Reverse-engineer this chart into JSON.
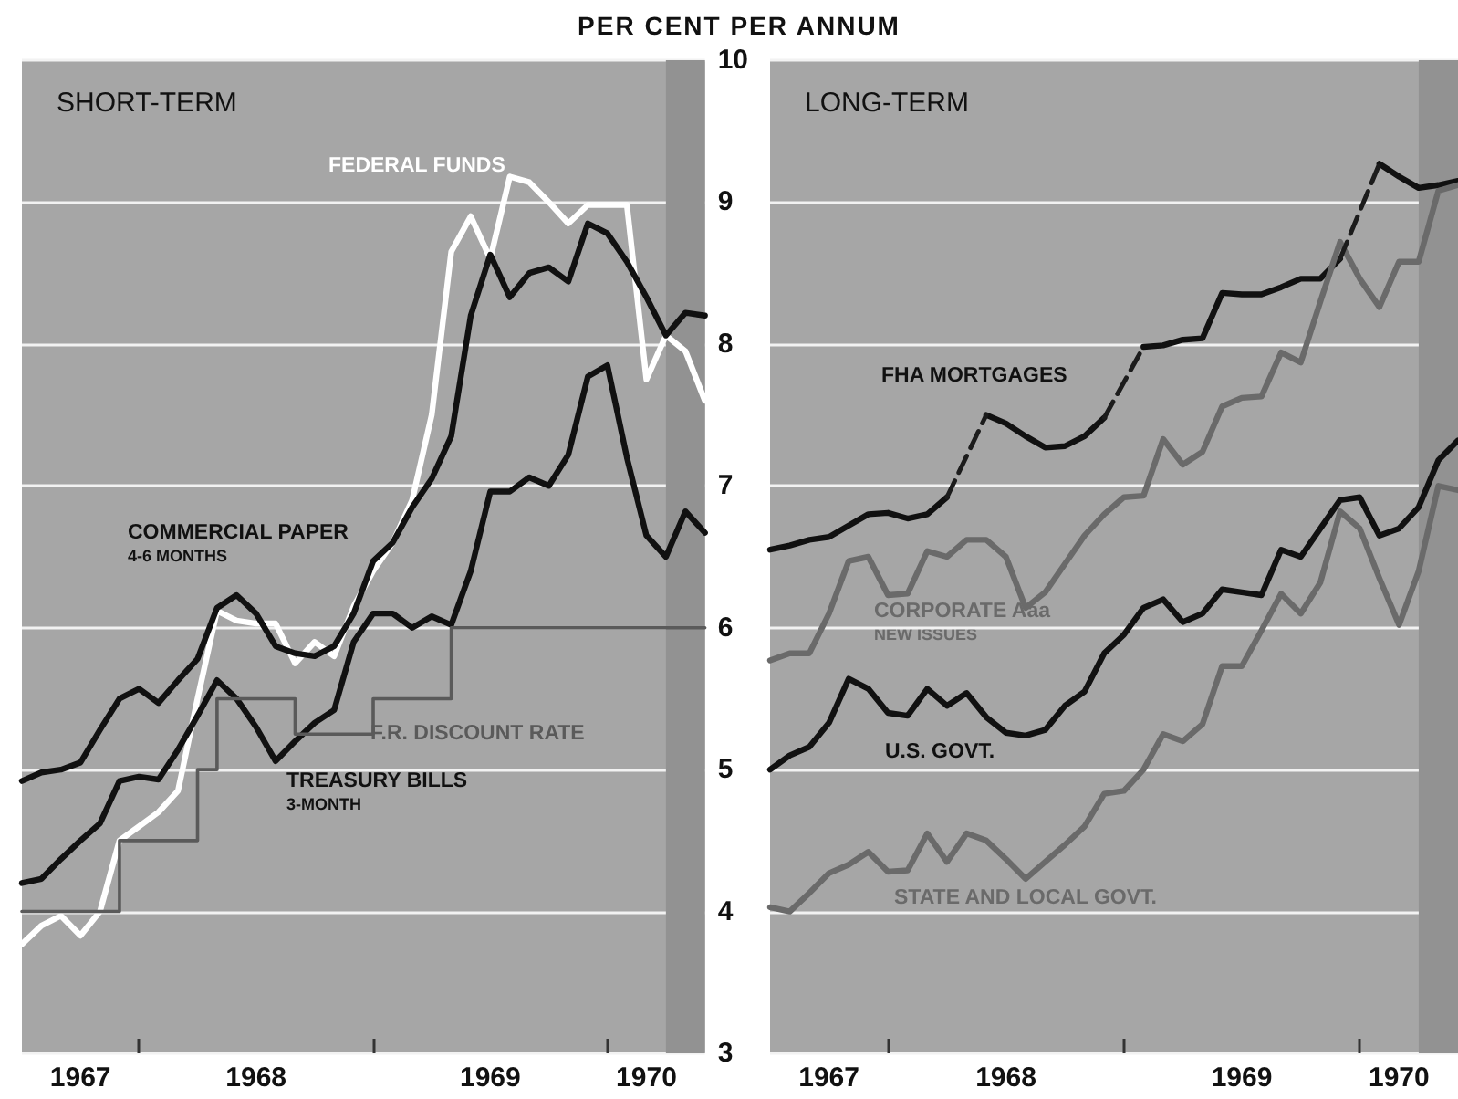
{
  "chart_data": [
    {
      "type": "line",
      "title": "SHORT-TERM",
      "ylabel": "PER CENT PER ANNUM",
      "x": [
        "1967-07",
        "1967-08",
        "1967-09",
        "1967-10",
        "1967-11",
        "1967-12",
        "1968-01",
        "1968-02",
        "1968-03",
        "1968-04",
        "1968-05",
        "1968-06",
        "1968-07",
        "1968-08",
        "1968-09",
        "1968-10",
        "1968-11",
        "1968-12",
        "1969-01",
        "1969-02",
        "1969-03",
        "1969-04",
        "1969-05",
        "1969-06",
        "1969-07",
        "1969-08",
        "1969-09",
        "1969-10",
        "1969-11",
        "1969-12",
        "1970-01",
        "1970-02",
        "1970-03",
        "1970-04",
        "1970-05",
        "1970-06"
      ],
      "series": [
        {
          "name": "FEDERAL FUNDS",
          "color": "#ffffff",
          "values": [
            3.77,
            3.9,
            3.97,
            3.83,
            4.0,
            4.5,
            4.6,
            4.7,
            4.85,
            5.5,
            6.12,
            6.05,
            6.03,
            6.03,
            5.75,
            5.9,
            5.8,
            6.15,
            6.4,
            6.6,
            6.9,
            7.5,
            8.65,
            8.9,
            8.6,
            9.18,
            9.14,
            9.0,
            8.85,
            8.98,
            8.98,
            8.98,
            7.75,
            8.06,
            7.95,
            7.6
          ]
        },
        {
          "name": "COMMERCIAL PAPER\n4-6 MONTHS",
          "color": "#111111",
          "values": [
            4.92,
            4.98,
            5.0,
            5.05,
            5.28,
            5.5,
            5.57,
            5.47,
            5.63,
            5.78,
            6.14,
            6.23,
            6.1,
            5.87,
            5.82,
            5.8,
            5.87,
            6.1,
            6.47,
            6.6,
            6.85,
            7.05,
            7.35,
            8.2,
            8.63,
            8.33,
            8.5,
            8.54,
            8.44,
            8.85,
            8.78,
            8.58,
            8.33,
            8.06,
            8.22,
            8.2
          ]
        },
        {
          "name": "TREASURY BILLS\n3-MONTH",
          "color": "#111111",
          "values": [
            4.2,
            4.23,
            4.37,
            4.5,
            4.62,
            4.92,
            4.95,
            4.93,
            5.14,
            5.38,
            5.63,
            5.5,
            5.3,
            5.06,
            5.2,
            5.33,
            5.42,
            5.9,
            6.1,
            6.1,
            6.0,
            6.08,
            6.02,
            6.4,
            6.96,
            6.96,
            7.06,
            7.0,
            7.22,
            7.77,
            7.85,
            7.2,
            6.65,
            6.5,
            6.82,
            6.67
          ]
        },
        {
          "name": "F.R. DISCOUNT RATE",
          "type": "step",
          "color": "#5a5a5a",
          "values": [
            4.0,
            4.0,
            4.0,
            4.0,
            4.0,
            4.5,
            4.5,
            4.5,
            4.5,
            5.0,
            5.5,
            5.5,
            5.5,
            5.5,
            5.25,
            5.25,
            5.25,
            5.25,
            5.5,
            5.5,
            5.5,
            5.5,
            6.0,
            6.0,
            6.0,
            6.0,
            6.0,
            6.0,
            6.0,
            6.0,
            6.0,
            6.0,
            6.0,
            6.0,
            6.0,
            6.0
          ]
        }
      ],
      "xlim": [
        "1967-07",
        "1970-06"
      ],
      "xticks": [
        {
          "value": "1967-10",
          "label": "1967"
        },
        {
          "value": "1968-01",
          "label": null
        },
        {
          "value": "1968-07",
          "label": "1968"
        },
        {
          "value": "1969-01",
          "label": null
        },
        {
          "value": "1969-07",
          "label": "1969"
        },
        {
          "value": "1970-01",
          "label": null
        },
        {
          "value": "1970-03",
          "label": "1970"
        }
      ],
      "ylim": [
        3,
        10
      ],
      "yticks": [
        3,
        4,
        5,
        6,
        7,
        8,
        9,
        10
      ],
      "grid": "y",
      "bands": [
        {
          "axis": "x",
          "from": "1970-04",
          "to": "1970-06",
          "color": "#929292"
        }
      ]
    },
    {
      "type": "line",
      "title": "LONG-TERM",
      "x": [
        "1967-07",
        "1967-08",
        "1967-09",
        "1967-10",
        "1967-11",
        "1967-12",
        "1968-01",
        "1968-02",
        "1968-03",
        "1968-04",
        "1968-05",
        "1968-06",
        "1968-07",
        "1968-08",
        "1968-09",
        "1968-10",
        "1968-11",
        "1968-12",
        "1969-01",
        "1969-02",
        "1969-03",
        "1969-04",
        "1969-05",
        "1969-06",
        "1969-07",
        "1969-08",
        "1969-09",
        "1969-10",
        "1969-11",
        "1969-12",
        "1970-01",
        "1970-02",
        "1970-03",
        "1970-04",
        "1970-05",
        "1970-06"
      ],
      "series": [
        {
          "name": "FHA MORTGAGES",
          "color": "#111111",
          "values": [
            6.55,
            6.58,
            6.62,
            6.64,
            6.72,
            6.8,
            6.81,
            6.77,
            6.8,
            6.92,
            null,
            7.5,
            7.44,
            7.35,
            7.27,
            7.28,
            7.35,
            7.48,
            null,
            7.98,
            7.99,
            8.03,
            8.04,
            8.36,
            8.35,
            8.35,
            8.4,
            8.46,
            8.46,
            8.6,
            null,
            9.27,
            9.18,
            9.1,
            9.12,
            9.15
          ]
        },
        {
          "name": "CORPORATE Aaa\nNEW ISSUES",
          "color": "#6a6a6a",
          "values": [
            5.77,
            5.82,
            5.82,
            6.1,
            6.47,
            6.5,
            6.23,
            6.24,
            6.54,
            6.5,
            6.62,
            6.62,
            6.5,
            6.14,
            6.25,
            6.45,
            6.65,
            6.8,
            6.92,
            6.93,
            7.33,
            7.15,
            7.24,
            7.56,
            7.62,
            7.63,
            7.94,
            7.87,
            8.3,
            8.72,
            8.46,
            8.26,
            8.58,
            8.58,
            9.08,
            9.12
          ]
        },
        {
          "name": "U.S. GOVT.",
          "color": "#111111",
          "values": [
            5.0,
            5.1,
            5.16,
            5.33,
            5.64,
            5.57,
            5.4,
            5.38,
            5.57,
            5.45,
            5.54,
            5.37,
            5.26,
            5.24,
            5.28,
            5.45,
            5.55,
            5.82,
            5.95,
            6.14,
            6.2,
            6.04,
            6.1,
            6.27,
            6.25,
            6.23,
            6.55,
            6.5,
            6.7,
            6.9,
            6.92,
            6.65,
            6.7,
            6.85,
            7.18,
            7.32
          ]
        },
        {
          "name": "STATE AND LOCAL GOVT.",
          "color": "#6a6a6a",
          "values": [
            4.03,
            4.0,
            4.13,
            4.27,
            4.33,
            4.42,
            4.28,
            4.29,
            4.55,
            4.35,
            4.55,
            4.5,
            4.37,
            4.23,
            4.35,
            4.47,
            4.6,
            4.83,
            4.85,
            5.0,
            5.25,
            5.2,
            5.32,
            5.73,
            5.73,
            5.98,
            6.24,
            6.1,
            6.32,
            6.82,
            6.7,
            6.35,
            6.02,
            6.4,
            7.0,
            6.97
          ]
        },
        {
          "color": "#1c1c1c",
          "line_style": "dashed",
          "x": [
            "1968-04",
            "1968-06"
          ],
          "values": [
            6.92,
            7.5
          ]
        },
        {
          "color": "#1c1c1c",
          "line_style": "dashed",
          "x": [
            "1968-12",
            "1969-02"
          ],
          "values": [
            7.48,
            7.98
          ]
        },
        {
          "color": "#1c1c1c",
          "line_style": "dashed",
          "x": [
            "1969-12",
            "1970-02"
          ],
          "values": [
            8.6,
            9.27
          ]
        }
      ],
      "xlim": [
        "1967-07",
        "1970-06"
      ],
      "xticks": [
        {
          "value": "1967-10",
          "label": "1967"
        },
        {
          "value": "1968-01",
          "label": null
        },
        {
          "value": "1968-07",
          "label": "1968"
        },
        {
          "value": "1969-01",
          "label": null
        },
        {
          "value": "1969-07",
          "label": "1969"
        },
        {
          "value": "1970-01",
          "label": null
        },
        {
          "value": "1970-03",
          "label": "1970"
        }
      ],
      "ylim": [
        3,
        10
      ],
      "yticks": [
        3,
        4,
        5,
        6,
        7,
        8,
        9,
        10
      ],
      "grid": "y",
      "tick_labels": "x",
      "bands": [
        {
          "axis": "x",
          "from": "1970-04",
          "to": "1970-06",
          "color": "#929292"
        }
      ]
    }
  ]
}
